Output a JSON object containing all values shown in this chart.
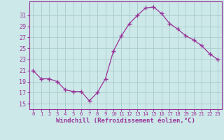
{
  "x": [
    0,
    1,
    2,
    3,
    4,
    5,
    6,
    7,
    8,
    9,
    10,
    11,
    12,
    13,
    14,
    15,
    16,
    17,
    18,
    19,
    20,
    21,
    22,
    23
  ],
  "y": [
    21,
    19.5,
    19.5,
    19,
    17.5,
    17.2,
    17.2,
    15.5,
    17,
    19.5,
    24.5,
    27.3,
    29.5,
    31.0,
    32.3,
    32.5,
    31.3,
    29.5,
    28.5,
    27.3,
    26.5,
    25.5,
    24.0,
    23.0
  ],
  "line_color": "#993399",
  "marker": "+",
  "marker_size": 4,
  "marker_lw": 1.0,
  "line_width": 0.9,
  "bg_color": "#cce8e8",
  "grid_color": "#aacccc",
  "xlabel": "Windchill (Refroidissement éolien,°C)",
  "xlabel_color": "#993399",
  "ytick_labels": [
    "15",
    "17",
    "19",
    "21",
    "23",
    "25",
    "27",
    "29",
    "31"
  ],
  "ytick_values": [
    15,
    17,
    19,
    21,
    23,
    25,
    27,
    29,
    31
  ],
  "ylim": [
    14.0,
    33.5
  ],
  "xlim": [
    -0.5,
    23.5
  ],
  "xtick_values": [
    0,
    1,
    2,
    3,
    4,
    5,
    6,
    7,
    8,
    9,
    10,
    11,
    12,
    13,
    14,
    15,
    16,
    17,
    18,
    19,
    20,
    21,
    22,
    23
  ],
  "tick_color": "#993399",
  "spine_color": "#993399",
  "xtick_fontsize": 5.2,
  "ytick_fontsize": 6.0,
  "xlabel_fontsize": 6.5
}
